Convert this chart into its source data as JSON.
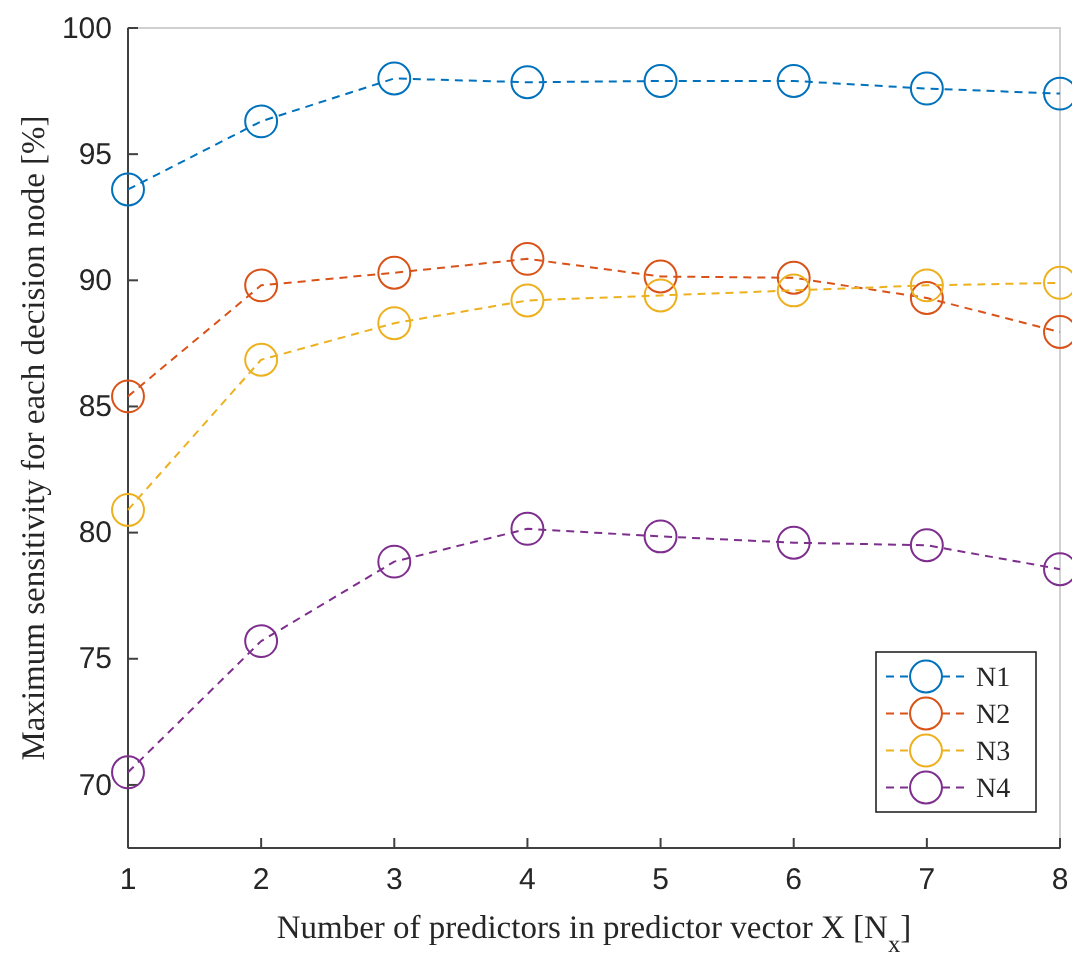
{
  "chart_data": {
    "type": "line",
    "xlabel": "Number of predictors in predictor vector X [N$_{x}$]",
    "ylabel": "Maximum sensitivity for each decision node [%]",
    "x": [
      1,
      2,
      3,
      4,
      5,
      6,
      7,
      8
    ],
    "xlim": [
      1,
      8
    ],
    "xticks": [
      1,
      2,
      3,
      4,
      5,
      6,
      7,
      8
    ],
    "ylim": [
      67.5,
      100
    ],
    "yticks": [
      70,
      75,
      80,
      85,
      90,
      95,
      100
    ],
    "series": [
      {
        "name": "N1",
        "color": "#0072bd",
        "values": [
          93.6,
          96.3,
          98.0,
          97.85,
          97.9,
          97.9,
          97.6,
          97.4
        ]
      },
      {
        "name": "N2",
        "color": "#d95319",
        "values": [
          85.4,
          89.8,
          90.3,
          90.85,
          90.15,
          90.1,
          89.3,
          87.95
        ]
      },
      {
        "name": "N3",
        "color": "#edb120",
        "values": [
          80.9,
          86.85,
          88.3,
          89.2,
          89.4,
          89.6,
          89.8,
          89.9
        ]
      },
      {
        "name": "N4",
        "color": "#7e2f8e",
        "values": [
          70.5,
          75.7,
          78.85,
          80.15,
          79.85,
          79.6,
          79.5,
          78.55
        ]
      }
    ],
    "marker": "circle",
    "line_style": "dashed",
    "legend": "bottom right",
    "grid": false
  }
}
